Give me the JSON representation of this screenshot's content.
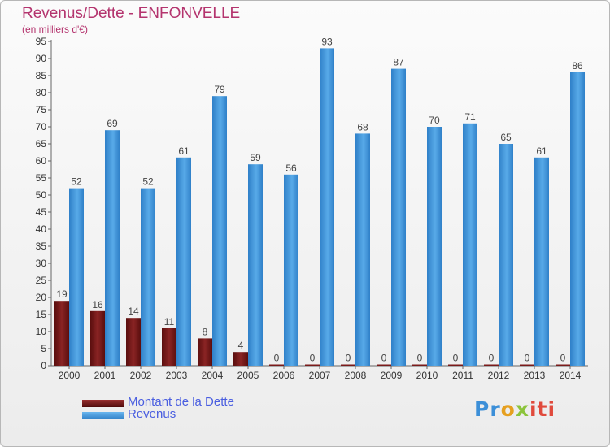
{
  "header": {
    "title": "Revenus/Dette - ENFONVELLE",
    "subtitle": "(en milliers d'€)"
  },
  "chart_data": {
    "type": "bar",
    "title": "Revenus/Dette - ENFONVELLE",
    "subtitle": "(en milliers d'€)",
    "xlabel": "",
    "ylabel": "",
    "ylim": [
      0,
      95
    ],
    "ytick_step": 5,
    "grid": false,
    "legend_position": "bottom-left",
    "categories": [
      "2000",
      "2001",
      "2002",
      "2003",
      "2004",
      "2005",
      "2006",
      "2007",
      "2008",
      "2009",
      "2010",
      "2011",
      "2012",
      "2013",
      "2014"
    ],
    "series": [
      {
        "name": "Montant de la Dette",
        "color": "#7a1a1a",
        "values": [
          19,
          16,
          14,
          11,
          8,
          4,
          0,
          0,
          0,
          0,
          0,
          0,
          0,
          0,
          0
        ]
      },
      {
        "name": "Revenus",
        "color": "#3d93d8",
        "values": [
          52,
          69,
          52,
          61,
          79,
          59,
          56,
          93,
          68,
          87,
          70,
          71,
          65,
          61,
          86
        ]
      }
    ]
  },
  "legend": {
    "items": [
      {
        "label": "Montant de la Dette",
        "color": "#7a1a1a"
      },
      {
        "label": "Revenus",
        "color": "#3d93d8"
      }
    ]
  },
  "logo": {
    "letters": [
      "Pr",
      "o",
      "x",
      "iti"
    ]
  }
}
